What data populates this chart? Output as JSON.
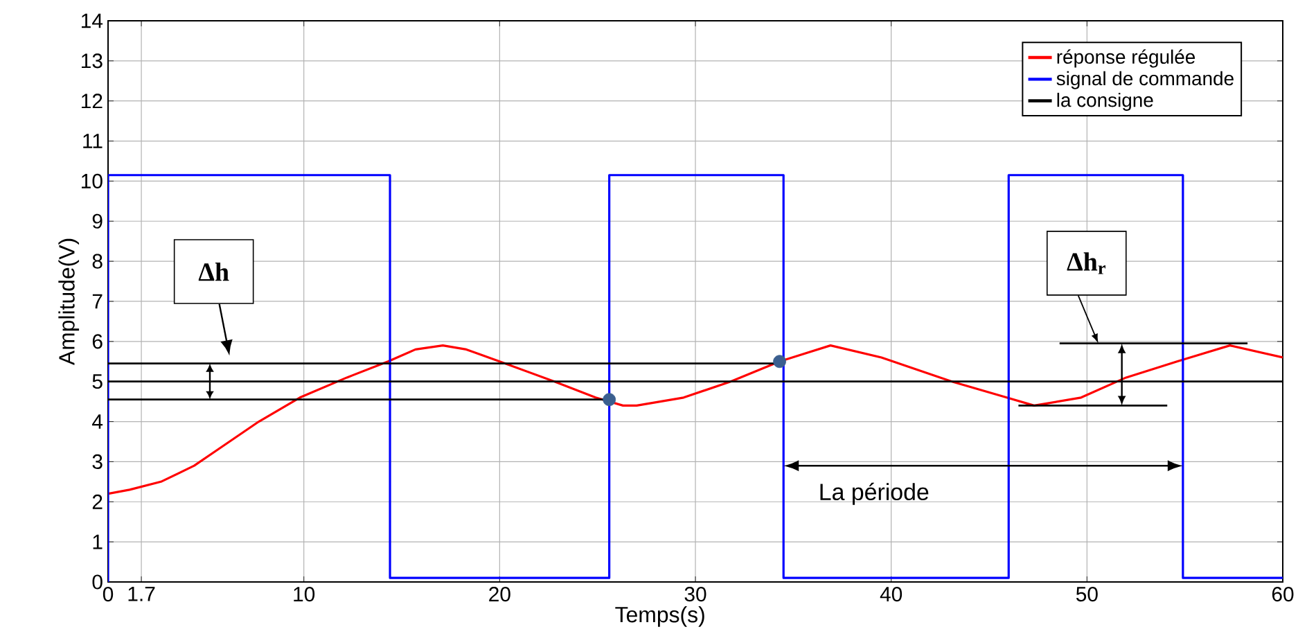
{
  "chart_data": {
    "type": "line",
    "xlabel": "Temps(s)",
    "ylabel": "Amplitude(V)",
    "xlim": [
      0,
      60
    ],
    "ylim": [
      0,
      14
    ],
    "xticks": [
      0,
      1.7,
      10,
      20,
      30,
      40,
      50,
      60
    ],
    "yticks": [
      0,
      1,
      2,
      3,
      4,
      5,
      6,
      7,
      8,
      9,
      10,
      11,
      12,
      13,
      14
    ],
    "grid": true,
    "legend": "top right",
    "series": [
      {
        "name": "réponse régulée",
        "color": "#ff0000",
        "x": [
          0,
          1.1,
          2.7,
          4.4,
          5.6,
          7.7,
          9.8,
          12.2,
          14.3,
          15.7,
          17.1,
          18.3,
          20,
          22.8,
          24.9,
          26.3,
          27,
          29.4,
          31.8,
          34.3,
          36.9,
          39.5,
          43.1,
          45.9,
          47.3,
          49.7,
          52,
          54.6,
          57.3,
          60
        ],
        "values": [
          2.2,
          2.3,
          2.5,
          2.9,
          3.3,
          4.0,
          4.6,
          5.1,
          5.5,
          5.8,
          5.9,
          5.8,
          5.5,
          5.0,
          4.6,
          4.4,
          4.4,
          4.6,
          5.0,
          5.5,
          5.9,
          5.6,
          5.0,
          4.6,
          4.4,
          4.6,
          5.1,
          5.5,
          5.9,
          5.6
        ]
      },
      {
        "name": "signal de commande",
        "color": "#0000ff",
        "x": [
          0,
          0,
          14.4,
          14.4,
          25.6,
          25.6,
          34.5,
          34.5,
          46.0,
          46.0,
          54.9,
          54.9,
          60
        ],
        "values": [
          0,
          10.15,
          10.15,
          0.1,
          0.1,
          10.15,
          10.15,
          0.1,
          0.1,
          10.15,
          10.15,
          0.1,
          0.1
        ]
      },
      {
        "name": "la consigne",
        "color": "#000000",
        "x": [
          0,
          60
        ],
        "values": [
          5,
          5
        ]
      },
      {
        "color": "#000000",
        "x": [
          0,
          34.3
        ],
        "values": [
          5.45,
          5.45
        ]
      },
      {
        "color": "#000000",
        "x": [
          0,
          25.6
        ],
        "values": [
          4.55,
          4.55
        ]
      },
      {
        "color": "#000000",
        "x": [
          48.6,
          58.2
        ],
        "values": [
          5.95,
          5.95
        ]
      },
      {
        "color": "#000000",
        "x": [
          46.5,
          54.1
        ],
        "values": [
          4.4,
          4.4
        ]
      },
      {
        "type": "scatter",
        "marker": "circle",
        "color": "#3b5f8f",
        "x": [
          25.6,
          34.3
        ],
        "values": [
          4.55,
          5.5
        ]
      }
    ],
    "annotations": [
      "Δh",
      "Δh$_{r}$",
      "La période"
    ]
  }
}
